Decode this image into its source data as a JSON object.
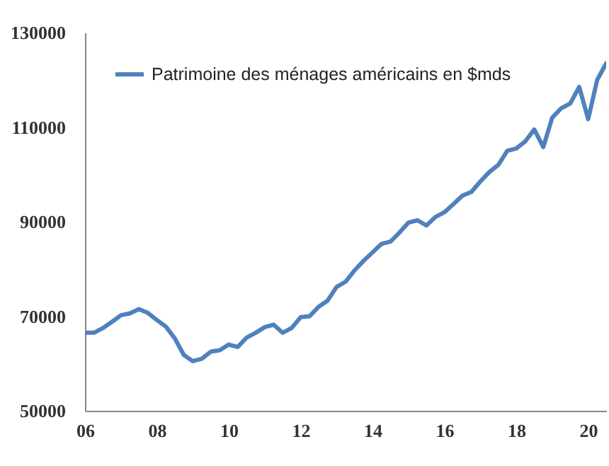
{
  "chart_data": {
    "type": "line",
    "x": [
      2006,
      2006.25,
      2006.5,
      2006.75,
      2007,
      2007.25,
      2007.5,
      2007.75,
      2008,
      2008.25,
      2008.5,
      2008.75,
      2009,
      2009.25,
      2009.5,
      2009.75,
      2010,
      2010.25,
      2010.5,
      2010.75,
      2011,
      2011.25,
      2011.5,
      2011.75,
      2012,
      2012.25,
      2012.5,
      2012.75,
      2013,
      2013.25,
      2013.5,
      2013.75,
      2014,
      2014.25,
      2014.5,
      2014.75,
      2015,
      2015.25,
      2015.5,
      2015.75,
      2016,
      2016.25,
      2016.5,
      2016.75,
      2017,
      2017.25,
      2017.5,
      2017.75,
      2018,
      2018.25,
      2018.5,
      2018.75,
      2019,
      2019.25,
      2019.5,
      2019.75,
      2020,
      2020.25,
      2020.5
    ],
    "series": [
      {
        "name": "Patrimoine des ménages américains en $mds",
        "color": "#4f81bd",
        "values": [
          66500,
          66500,
          67500,
          68800,
          70200,
          70600,
          71500,
          70700,
          69200,
          67800,
          65300,
          61800,
          60500,
          61000,
          62500,
          62800,
          64000,
          63500,
          65500,
          66500,
          67700,
          68200,
          66500,
          67500,
          69800,
          70000,
          72000,
          73300,
          76200,
          77300,
          79700,
          81700,
          83500,
          85300,
          85800,
          87700,
          89800,
          90300,
          89200,
          91000,
          92000,
          93700,
          95500,
          96300,
          98500,
          100500,
          102000,
          105000,
          105500,
          107000,
          109500,
          105800,
          112000,
          114000,
          115000,
          118500,
          111700,
          120000,
          123500
        ]
      }
    ],
    "xlim": [
      2006,
      2020.5
    ],
    "xticks": [
      {
        "value": 2006,
        "label": "06"
      },
      {
        "value": 2008,
        "label": "08"
      },
      {
        "value": 2010,
        "label": "10"
      },
      {
        "value": 2012,
        "label": "12"
      },
      {
        "value": 2014,
        "label": "14"
      },
      {
        "value": 2016,
        "label": "16"
      },
      {
        "value": 2018,
        "label": "18"
      },
      {
        "value": 2020,
        "label": "20"
      }
    ],
    "ylim": [
      50000,
      130000
    ],
    "yticks": [
      50000,
      70000,
      90000,
      110000,
      130000
    ],
    "grid": false,
    "legend": "top",
    "marker": "none",
    "line_style": "solid"
  }
}
